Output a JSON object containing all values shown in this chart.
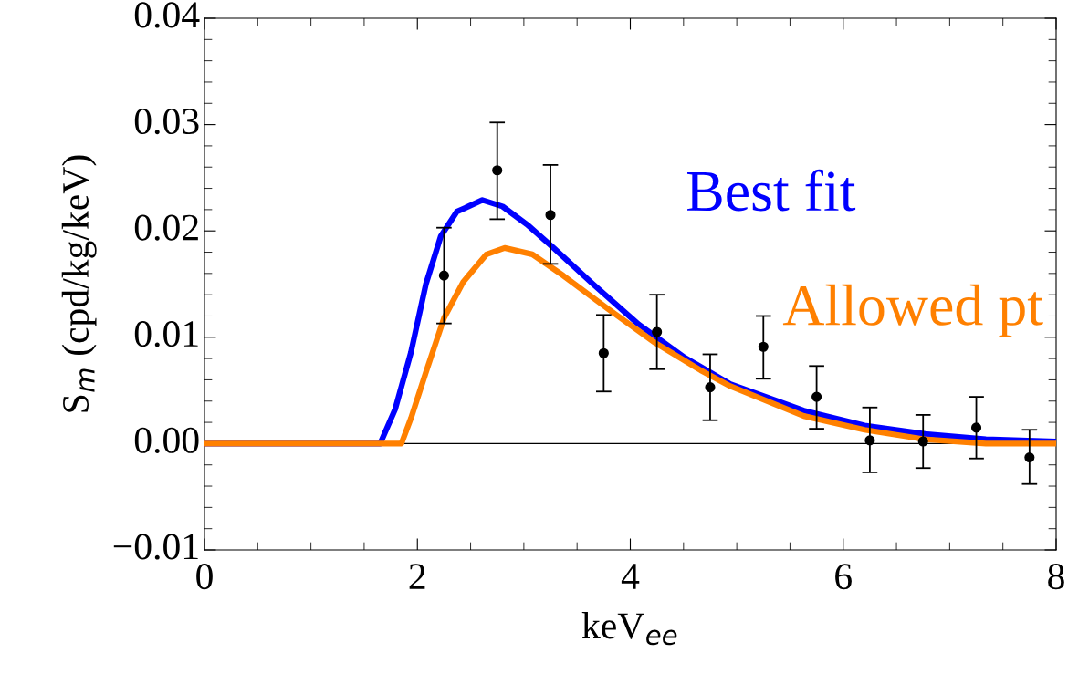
{
  "chart_data": {
    "type": "scatter",
    "xlabel": "keV$_{ee}$",
    "ylabel": "S$_{m}$ (cpd/kg/keV)",
    "xlim": [
      0,
      8
    ],
    "ylim": [
      -0.01,
      0.04
    ],
    "xticks": [
      0,
      2,
      4,
      6,
      8
    ],
    "yticks": [
      {
        "value": -0.01,
        "label": "−0.01"
      },
      {
        "value": 0,
        "label": "0.00"
      },
      {
        "value": 0.01,
        "label": "0.01"
      },
      {
        "value": 0.02,
        "label": "0.02"
      },
      {
        "value": 0.03,
        "label": "0.03"
      },
      {
        "value": 0.04,
        "label": "0.04"
      }
    ],
    "grid": false,
    "legend": false,
    "ref_lines": [
      {
        "axis": "y",
        "value": 0,
        "color": "#000000"
      }
    ],
    "series": [
      {
        "type": "line",
        "name": "Best fit",
        "color": "#0000ff",
        "marker": "none",
        "line_style": "solid",
        "x": [
          0,
          1.65,
          1.79,
          1.94,
          2.08,
          2.22,
          2.37,
          2.61,
          2.8,
          3.03,
          3.28,
          3.65,
          4.08,
          4.51,
          4.94,
          5.63,
          6.2,
          6.77,
          7.34,
          8
        ],
        "values": [
          0,
          0,
          0.0032,
          0.0086,
          0.015,
          0.0195,
          0.0218,
          0.0229,
          0.0223,
          0.0206,
          0.0184,
          0.015,
          0.0112,
          0.0081,
          0.0056,
          0.0031,
          0.0017,
          0.0009,
          0.0004,
          0.0002
        ]
      },
      {
        "type": "line",
        "name": "Allowed pt",
        "color": "#ff8000",
        "marker": "none",
        "line_style": "solid",
        "x": [
          0,
          1.85,
          1.94,
          2.08,
          2.25,
          2.43,
          2.65,
          2.82,
          3.08,
          3.37,
          3.8,
          4.23,
          4.66,
          4.94,
          5.63,
          6.2,
          6.77,
          7.34,
          8
        ],
        "values": [
          0,
          0,
          0.0024,
          0.0067,
          0.0118,
          0.0152,
          0.0178,
          0.0184,
          0.0178,
          0.0158,
          0.0126,
          0.0095,
          0.0069,
          0.0054,
          0.0026,
          0.0013,
          0.0004,
          0,
          0
        ]
      },
      {
        "color": "#000000",
        "marker": "circle",
        "x": [
          2.25,
          2.75,
          3.25,
          3.75,
          4.25,
          4.75,
          5.25,
          5.75,
          6.25,
          6.75,
          7.25,
          7.75
        ],
        "values": [
          0.0158,
          0.0257,
          0.0215,
          0.0085,
          0.0105,
          0.0053,
          0.0091,
          0.0044,
          0.0003,
          0.0002,
          0.0015,
          -0.0013
        ],
        "errors": [
          [
            0.0113,
            0.0203
          ],
          [
            0.0211,
            0.0302
          ],
          [
            0.0169,
            0.0262
          ],
          [
            0.0049,
            0.0121
          ],
          [
            0.007,
            0.014
          ],
          [
            0.0022,
            0.0084
          ],
          [
            0.0061,
            0.012
          ],
          [
            0.0014,
            0.0073
          ],
          [
            -0.0027,
            0.0034
          ],
          [
            -0.0023,
            0.0027
          ],
          [
            -0.0014,
            0.0044
          ],
          [
            -0.0038,
            0.0013
          ]
        ]
      }
    ]
  }
}
